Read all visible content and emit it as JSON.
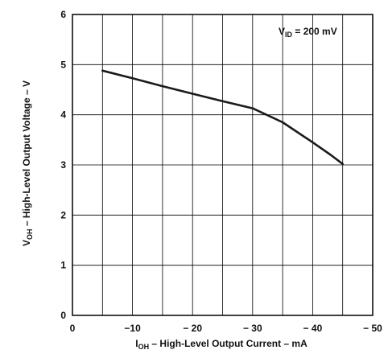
{
  "chart_data": {
    "type": "line",
    "x_axis": {
      "label_main": "I",
      "label_sub": "OH",
      "label_rest": " – High-Level Output Current – mA",
      "ticks": [
        0,
        -10,
        -20,
        -30,
        -40,
        -50
      ],
      "tick_labels": [
        "0",
        "−10",
        "− 20",
        "− 30",
        "− 40",
        "− 50"
      ],
      "range": [
        0,
        -50
      ],
      "grid": true
    },
    "y_axis": {
      "label_main": "V",
      "label_sub": "OH",
      "label_rest": " – High-Level Output Voltage – V",
      "ticks": [
        0,
        1,
        2,
        3,
        4,
        5,
        6
      ],
      "tick_labels": [
        "0",
        "1",
        "2",
        "3",
        "4",
        "5",
        "6"
      ],
      "range": [
        0,
        6
      ],
      "grid": true
    },
    "annotation": {
      "main": "V",
      "sub": "ID",
      "rest": " = 200 mV"
    },
    "series": [
      {
        "x": [
          -5,
          -10,
          -15,
          -20,
          -25,
          -30,
          -35,
          -40,
          -43,
          -45
        ],
        "y": [
          4.88,
          4.73,
          4.57,
          4.42,
          4.27,
          4.13,
          3.85,
          3.45,
          3.2,
          3.02
        ],
        "color": "#1a1a1a"
      }
    ]
  }
}
